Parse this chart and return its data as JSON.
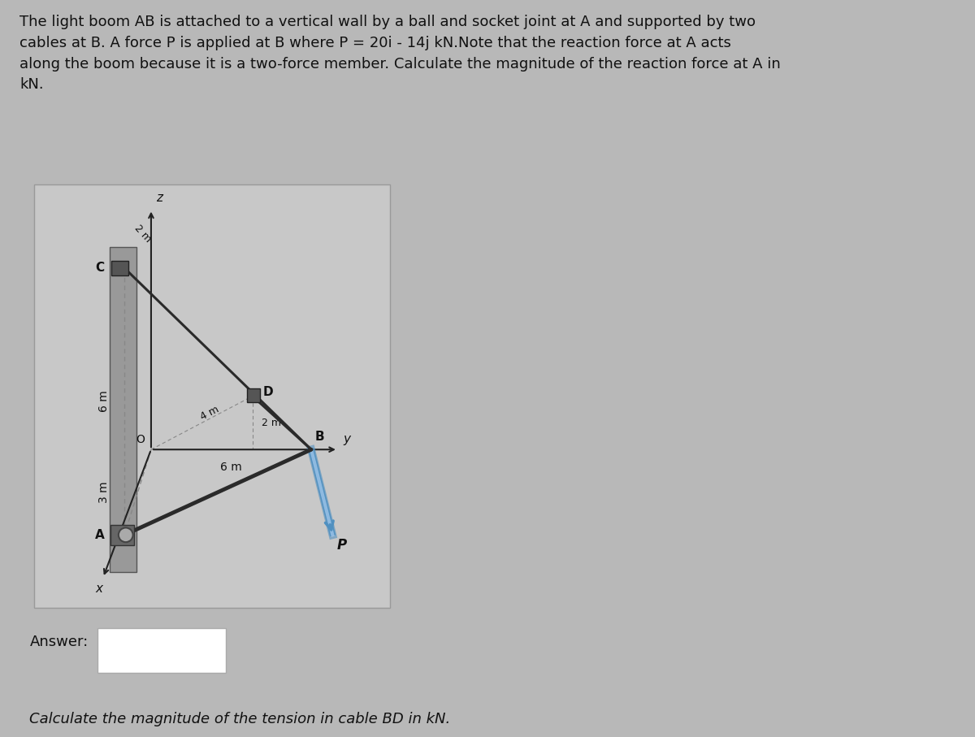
{
  "bg_color": "#b8b8b8",
  "diagram_box_color": "#c8c8c8",
  "wall_color": "#888888",
  "text_color": "#111111",
  "title_text": "The light boom AB is attached to a vertical wall by a ball and socket joint at A and supported by two\ncables at B. A force P is applied at B where P = 20i - 14j kN.Note that the reaction force at A acts\nalong the boom because it is a two-force member. Calculate the magnitude of the reaction force at A in\nkN.",
  "answer_label": "Answer:",
  "bottom_text": "Calculate the magnitude of the tension in cable BD in kN.",
  "boom_color": "#2a2a2a",
  "cable_color": "#2a2a2a",
  "force_color": "#5090c0",
  "dashed_color": "#888888",
  "axis_color": "#222222",
  "block_color": "#555555",
  "wall_fill": "#999999",
  "wall_edge": "#555555"
}
